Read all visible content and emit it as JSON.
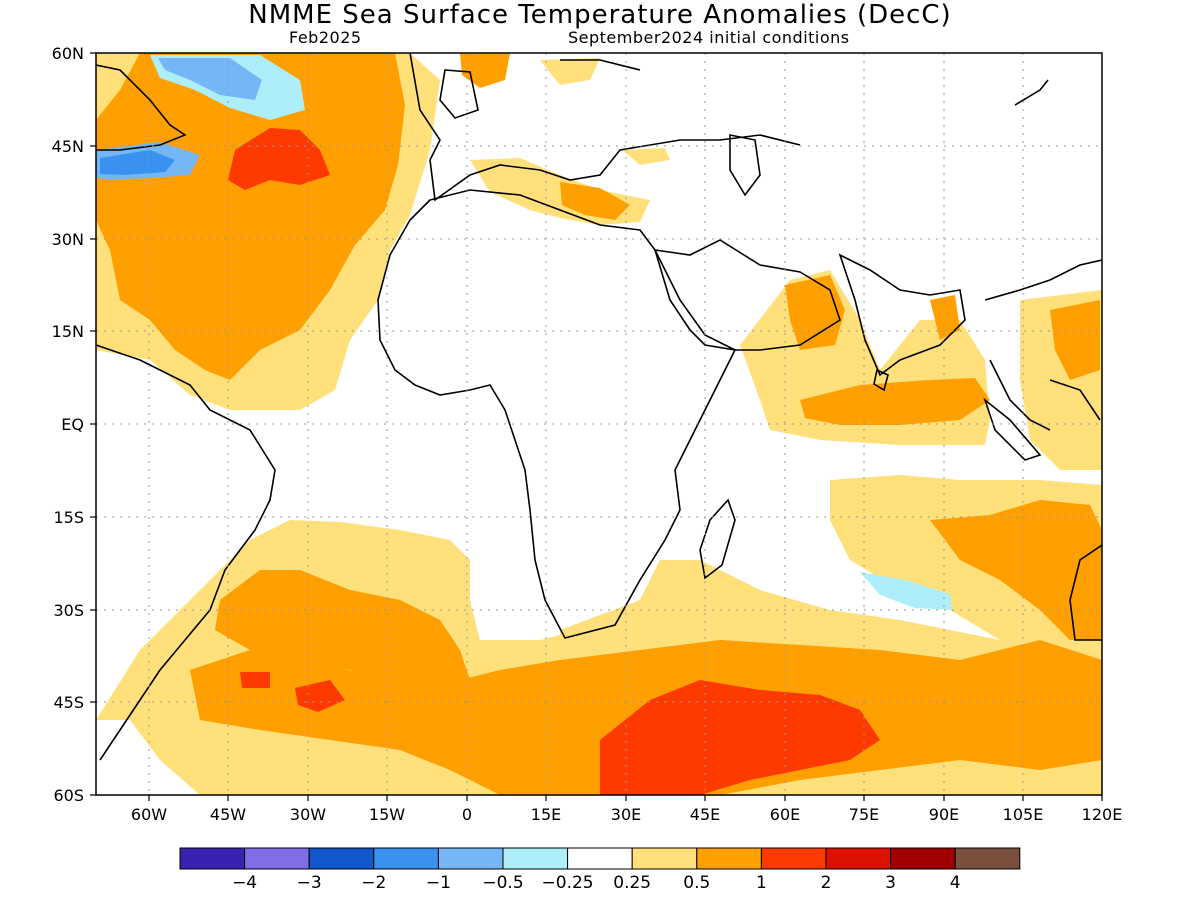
{
  "title": "NMME Sea Surface Temperature Anomalies (DecC)",
  "subtitle_left": "Feb2025",
  "subtitle_right": "September2024 initial conditions",
  "map": {
    "lon_range": [
      -70,
      120
    ],
    "lat_range": [
      -60,
      60
    ],
    "grid": true,
    "lon_ticks": [
      "60W",
      "45W",
      "30W",
      "15W",
      "0",
      "15E",
      "30E",
      "45E",
      "60E",
      "75E",
      "90E",
      "105E",
      "120E"
    ],
    "lat_ticks": [
      "60N",
      "45N",
      "30N",
      "15N",
      "EQ",
      "15S",
      "30S",
      "45S",
      "60S"
    ]
  },
  "colorbar": {
    "colors": [
      "#3a22b0",
      "#7f6ee8",
      "#1257cc",
      "#3a92f0",
      "#74b6f6",
      "#aeeefa",
      "#ffffff",
      "#ffe07a",
      "#ff9f00",
      "#ff3a00",
      "#dd1100",
      "#a10000",
      "#7b4f3e"
    ],
    "labels": [
      "−4",
      "−3",
      "−2",
      "−1",
      "−0.5",
      "−0.25",
      "0.25",
      "0.5",
      "1",
      "2",
      "3",
      "4"
    ]
  }
}
